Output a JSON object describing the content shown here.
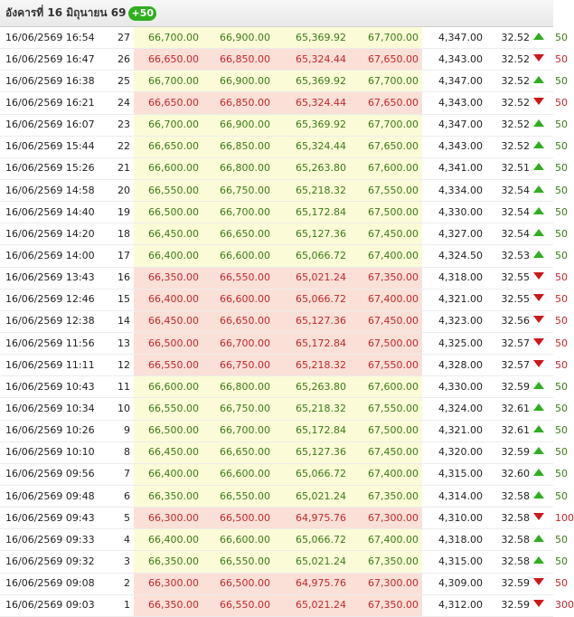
{
  "header": {
    "title": "อังคารที่ 16 มิถุนายน 69",
    "badge": "+50"
  },
  "colors": {
    "up": "#2fae1e",
    "down": "#d0171b",
    "up_bg": "#fbfbd7",
    "down_bg": "#fbe0d7"
  },
  "rows": [
    {
      "datetime": "16/06/2569 16:54",
      "round": "27",
      "bar_buy": "66,700.00",
      "bar_sell": "66,900.00",
      "orn_buy": "65,369.92",
      "orn_sell": "67,700.00",
      "spot": "4,347.00",
      "thb": "32.52",
      "dir": "up",
      "change": "50"
    },
    {
      "datetime": "16/06/2569 16:47",
      "round": "26",
      "bar_buy": "66,650.00",
      "bar_sell": "66,850.00",
      "orn_buy": "65,324.44",
      "orn_sell": "67,650.00",
      "spot": "4,343.00",
      "thb": "32.52",
      "dir": "down",
      "change": "50"
    },
    {
      "datetime": "16/06/2569 16:38",
      "round": "25",
      "bar_buy": "66,700.00",
      "bar_sell": "66,900.00",
      "orn_buy": "65,369.92",
      "orn_sell": "67,700.00",
      "spot": "4,347.00",
      "thb": "32.52",
      "dir": "up",
      "change": "50"
    },
    {
      "datetime": "16/06/2569 16:21",
      "round": "24",
      "bar_buy": "66,650.00",
      "bar_sell": "66,850.00",
      "orn_buy": "65,324.44",
      "orn_sell": "67,650.00",
      "spot": "4,343.00",
      "thb": "32.52",
      "dir": "down",
      "change": "50"
    },
    {
      "datetime": "16/06/2569 16:07",
      "round": "23",
      "bar_buy": "66,700.00",
      "bar_sell": "66,900.00",
      "orn_buy": "65,369.92",
      "orn_sell": "67,700.00",
      "spot": "4,347.00",
      "thb": "32.52",
      "dir": "up",
      "change": "50"
    },
    {
      "datetime": "16/06/2569 15:44",
      "round": "22",
      "bar_buy": "66,650.00",
      "bar_sell": "66,850.00",
      "orn_buy": "65,324.44",
      "orn_sell": "67,650.00",
      "spot": "4,343.00",
      "thb": "32.52",
      "dir": "up",
      "change": "50"
    },
    {
      "datetime": "16/06/2569 15:26",
      "round": "21",
      "bar_buy": "66,600.00",
      "bar_sell": "66,800.00",
      "orn_buy": "65,263.80",
      "orn_sell": "67,600.00",
      "spot": "4,341.00",
      "thb": "32.51",
      "dir": "up",
      "change": "50"
    },
    {
      "datetime": "16/06/2569 14:58",
      "round": "20",
      "bar_buy": "66,550.00",
      "bar_sell": "66,750.00",
      "orn_buy": "65,218.32",
      "orn_sell": "67,550.00",
      "spot": "4,334.00",
      "thb": "32.54",
      "dir": "up",
      "change": "50"
    },
    {
      "datetime": "16/06/2569 14:40",
      "round": "19",
      "bar_buy": "66,500.00",
      "bar_sell": "66,700.00",
      "orn_buy": "65,172.84",
      "orn_sell": "67,500.00",
      "spot": "4,330.00",
      "thb": "32.54",
      "dir": "up",
      "change": "50"
    },
    {
      "datetime": "16/06/2569 14:20",
      "round": "18",
      "bar_buy": "66,450.00",
      "bar_sell": "66,650.00",
      "orn_buy": "65,127.36",
      "orn_sell": "67,450.00",
      "spot": "4,327.00",
      "thb": "32.54",
      "dir": "up",
      "change": "50"
    },
    {
      "datetime": "16/06/2569 14:00",
      "round": "17",
      "bar_buy": "66,400.00",
      "bar_sell": "66,600.00",
      "orn_buy": "65,066.72",
      "orn_sell": "67,400.00",
      "spot": "4,324.50",
      "thb": "32.53",
      "dir": "up",
      "change": "50"
    },
    {
      "datetime": "16/06/2569 13:43",
      "round": "16",
      "bar_buy": "66,350.00",
      "bar_sell": "66,550.00",
      "orn_buy": "65,021.24",
      "orn_sell": "67,350.00",
      "spot": "4,318.00",
      "thb": "32.55",
      "dir": "down",
      "change": "50"
    },
    {
      "datetime": "16/06/2569 12:46",
      "round": "15",
      "bar_buy": "66,400.00",
      "bar_sell": "66,600.00",
      "orn_buy": "65,066.72",
      "orn_sell": "67,400.00",
      "spot": "4,321.00",
      "thb": "32.55",
      "dir": "down",
      "change": "50"
    },
    {
      "datetime": "16/06/2569 12:38",
      "round": "14",
      "bar_buy": "66,450.00",
      "bar_sell": "66,650.00",
      "orn_buy": "65,127.36",
      "orn_sell": "67,450.00",
      "spot": "4,323.00",
      "thb": "32.56",
      "dir": "down",
      "change": "50"
    },
    {
      "datetime": "16/06/2569 11:56",
      "round": "13",
      "bar_buy": "66,500.00",
      "bar_sell": "66,700.00",
      "orn_buy": "65,172.84",
      "orn_sell": "67,500.00",
      "spot": "4,325.00",
      "thb": "32.57",
      "dir": "down",
      "change": "50"
    },
    {
      "datetime": "16/06/2569 11:11",
      "round": "12",
      "bar_buy": "66,550.00",
      "bar_sell": "66,750.00",
      "orn_buy": "65,218.32",
      "orn_sell": "67,550.00",
      "spot": "4,328.00",
      "thb": "32.57",
      "dir": "down",
      "change": "50"
    },
    {
      "datetime": "16/06/2569 10:43",
      "round": "11",
      "bar_buy": "66,600.00",
      "bar_sell": "66,800.00",
      "orn_buy": "65,263.80",
      "orn_sell": "67,600.00",
      "spot": "4,330.00",
      "thb": "32.59",
      "dir": "up",
      "change": "50"
    },
    {
      "datetime": "16/06/2569 10:34",
      "round": "10",
      "bar_buy": "66,550.00",
      "bar_sell": "66,750.00",
      "orn_buy": "65,218.32",
      "orn_sell": "67,550.00",
      "spot": "4,324.00",
      "thb": "32.61",
      "dir": "up",
      "change": "50"
    },
    {
      "datetime": "16/06/2569 10:26",
      "round": "9",
      "bar_buy": "66,500.00",
      "bar_sell": "66,700.00",
      "orn_buy": "65,172.84",
      "orn_sell": "67,500.00",
      "spot": "4,321.00",
      "thb": "32.61",
      "dir": "up",
      "change": "50"
    },
    {
      "datetime": "16/06/2569 10:10",
      "round": "8",
      "bar_buy": "66,450.00",
      "bar_sell": "66,650.00",
      "orn_buy": "65,127.36",
      "orn_sell": "67,450.00",
      "spot": "4,320.00",
      "thb": "32.59",
      "dir": "up",
      "change": "50"
    },
    {
      "datetime": "16/06/2569 09:56",
      "round": "7",
      "bar_buy": "66,400.00",
      "bar_sell": "66,600.00",
      "orn_buy": "65,066.72",
      "orn_sell": "67,400.00",
      "spot": "4,315.00",
      "thb": "32.60",
      "dir": "up",
      "change": "50"
    },
    {
      "datetime": "16/06/2569 09:48",
      "round": "6",
      "bar_buy": "66,350.00",
      "bar_sell": "66,550.00",
      "orn_buy": "65,021.24",
      "orn_sell": "67,350.00",
      "spot": "4,314.00",
      "thb": "32.58",
      "dir": "up",
      "change": "50"
    },
    {
      "datetime": "16/06/2569 09:43",
      "round": "5",
      "bar_buy": "66,300.00",
      "bar_sell": "66,500.00",
      "orn_buy": "64,975.76",
      "orn_sell": "67,300.00",
      "spot": "4,310.00",
      "thb": "32.58",
      "dir": "down",
      "change": "100"
    },
    {
      "datetime": "16/06/2569 09:33",
      "round": "4",
      "bar_buy": "66,400.00",
      "bar_sell": "66,600.00",
      "orn_buy": "65,066.72",
      "orn_sell": "67,400.00",
      "spot": "4,318.00",
      "thb": "32.58",
      "dir": "up",
      "change": "50"
    },
    {
      "datetime": "16/06/2569 09:32",
      "round": "3",
      "bar_buy": "66,350.00",
      "bar_sell": "66,550.00",
      "orn_buy": "65,021.24",
      "orn_sell": "67,350.00",
      "spot": "4,315.00",
      "thb": "32.58",
      "dir": "up",
      "change": "50"
    },
    {
      "datetime": "16/06/2569 09:08",
      "round": "2",
      "bar_buy": "66,300.00",
      "bar_sell": "66,500.00",
      "orn_buy": "64,975.76",
      "orn_sell": "67,300.00",
      "spot": "4,309.00",
      "thb": "32.59",
      "dir": "down",
      "change": "50"
    },
    {
      "datetime": "16/06/2569 09:03",
      "round": "1",
      "bar_buy": "66,350.00",
      "bar_sell": "66,550.00",
      "orn_buy": "65,021.24",
      "orn_sell": "67,350.00",
      "spot": "4,312.00",
      "thb": "32.59",
      "dir": "down",
      "change": "300"
    }
  ]
}
